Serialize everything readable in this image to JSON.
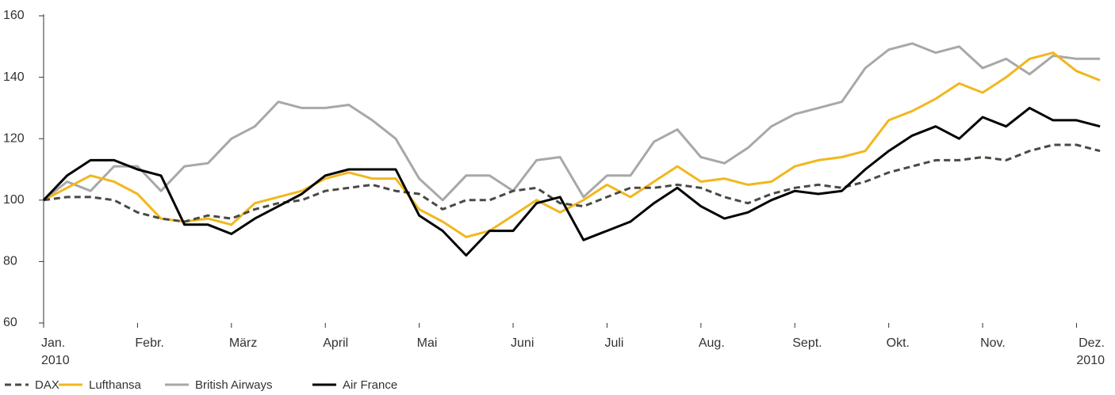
{
  "chart_data": {
    "type": "line",
    "xticks": [
      {
        "value": 0,
        "label": "Jan."
      },
      {
        "value": 1,
        "label": "Febr."
      },
      {
        "value": 2,
        "label": "März"
      },
      {
        "value": 3,
        "label": "April"
      },
      {
        "value": 4,
        "label": "Mai"
      },
      {
        "value": 5,
        "label": "Juni"
      },
      {
        "value": 6,
        "label": "Juli"
      },
      {
        "value": 7,
        "label": "Aug."
      },
      {
        "value": 8,
        "label": "Sept."
      },
      {
        "value": 9,
        "label": "Okt."
      },
      {
        "value": 10,
        "label": "Nov."
      },
      {
        "value": 11,
        "label": "Dez."
      }
    ],
    "x_year_labels": [
      "2010",
      "2010"
    ],
    "xlim": [
      0,
      11.3
    ],
    "ylim": [
      60,
      160
    ],
    "yticks": [
      60,
      80,
      100,
      120,
      140,
      160
    ],
    "x": [
      0,
      0.25,
      0.5,
      0.75,
      1,
      1.25,
      1.5,
      1.75,
      2,
      2.25,
      2.5,
      2.75,
      3,
      3.25,
      3.5,
      3.75,
      4,
      4.25,
      4.5,
      4.75,
      5,
      5.25,
      5.5,
      5.75,
      6,
      6.25,
      6.5,
      6.75,
      7,
      7.25,
      7.5,
      7.75,
      8,
      8.25,
      8.5,
      8.75,
      9,
      9.25,
      9.5,
      9.75,
      10,
      10.25,
      10.5,
      10.75,
      11,
      11.25
    ],
    "series": [
      {
        "name": "DAX",
        "color": "#4a4a44",
        "dashed": true,
        "values": [
          100,
          101,
          101,
          100,
          96,
          94,
          93,
          95,
          94,
          97,
          99,
          100,
          103,
          104,
          105,
          103,
          102,
          97,
          100,
          100,
          103,
          104,
          99,
          98,
          101,
          104,
          104,
          105,
          104,
          101,
          99,
          102,
          104,
          105,
          104,
          106,
          109,
          111,
          113,
          113,
          114,
          113,
          116,
          118,
          118,
          116
        ]
      },
      {
        "name": "Lufthansa",
        "color": "#f2b71d",
        "values": [
          100,
          104,
          108,
          106,
          102,
          94,
          93,
          94,
          92,
          99,
          101,
          103,
          107,
          109,
          107,
          107,
          97,
          93,
          88,
          90,
          95,
          100,
          96,
          100,
          105,
          101,
          106,
          111,
          106,
          107,
          105,
          106,
          111,
          113,
          114,
          116,
          126,
          129,
          133,
          138,
          135,
          140,
          146,
          148,
          142,
          139
        ]
      },
      {
        "name": "British Airways",
        "color": "#a8a8a8",
        "values": [
          100,
          106,
          103,
          111,
          111,
          103,
          111,
          112,
          120,
          124,
          132,
          130,
          130,
          131,
          126,
          120,
          107,
          100,
          108,
          108,
          103,
          113,
          114,
          101,
          108,
          108,
          119,
          123,
          114,
          112,
          117,
          124,
          128,
          130,
          132,
          143,
          149,
          151,
          148,
          150,
          143,
          146,
          141,
          147,
          146,
          146
        ]
      },
      {
        "name": "Air France",
        "color": "#000000",
        "values": [
          100,
          108,
          113,
          113,
          110,
          108,
          92,
          92,
          89,
          94,
          98,
          102,
          108,
          110,
          110,
          110,
          95,
          90,
          82,
          90,
          90,
          99,
          101,
          87,
          90,
          93,
          99,
          104,
          98,
          94,
          96,
          100,
          103,
          102,
          103,
          110,
          116,
          121,
          124,
          120,
          127,
          124,
          130,
          126,
          126,
          124
        ]
      }
    ]
  }
}
